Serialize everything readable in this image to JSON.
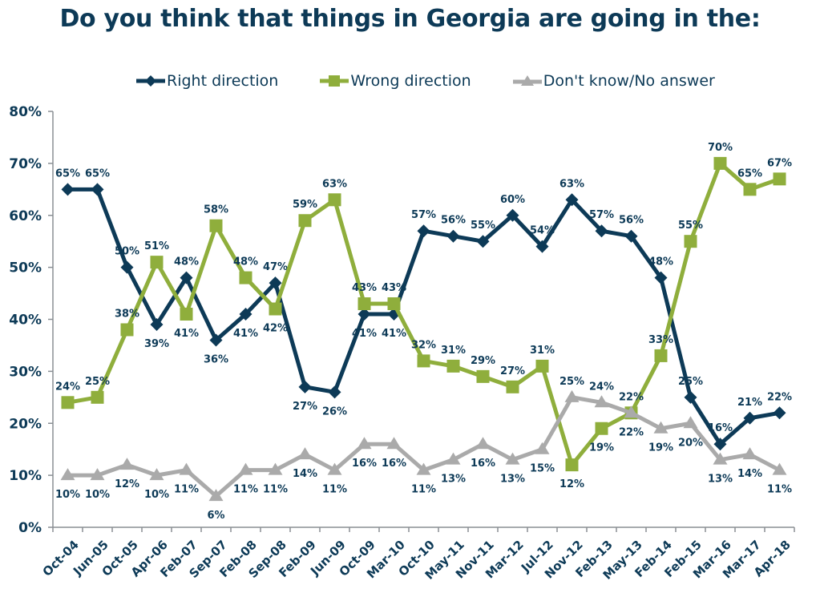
{
  "chart_data": {
    "type": "line",
    "title": "Do you think that things in Georgia are going in the:",
    "xlabel": "",
    "ylabel": "",
    "ylim": [
      0,
      80
    ],
    "yticks": [
      "0%",
      "10%",
      "20%",
      "30%",
      "40%",
      "50%",
      "60%",
      "70%",
      "80%"
    ],
    "grid": false,
    "legend_position": "top",
    "categories": [
      "Oct-04",
      "Jun-05",
      "Oct-05",
      "Apr-06",
      "Feb-07",
      "Sep-07",
      "Feb-08",
      "Sep-08",
      "Feb-09",
      "Jun-09",
      "Oct-09",
      "Mar-10",
      "Oct-10",
      "May-11",
      "Nov-11",
      "Mar-12",
      "Jul-12",
      "Nov-12",
      "Feb-13",
      "May-13",
      "Feb-14",
      "Feb-15",
      "Mar-16",
      "Mar-17",
      "Apr-18"
    ],
    "series": [
      {
        "name": "Right direction",
        "color": "#0d3a57",
        "marker": "diamond",
        "values": [
          65,
          65,
          50,
          39,
          48,
          36,
          41,
          47,
          27,
          26,
          41,
          41,
          57,
          56,
          55,
          60,
          54,
          63,
          57,
          56,
          48,
          25,
          16,
          21,
          22
        ],
        "label_pos": [
          "a",
          "a",
          "a",
          "b",
          "a",
          "b",
          "b",
          "a",
          "b",
          "b",
          "b",
          "b",
          "a",
          "a",
          "a",
          "a",
          "a",
          "a",
          "a",
          "a",
          "a",
          "a",
          "a",
          "a",
          "a"
        ]
      },
      {
        "name": "Wrong direction",
        "color": "#8fae3c",
        "marker": "square",
        "values": [
          24,
          25,
          38,
          51,
          41,
          58,
          48,
          42,
          59,
          63,
          43,
          43,
          32,
          31,
          29,
          27,
          31,
          12,
          19,
          22,
          33,
          55,
          70,
          65,
          67
        ],
        "label_pos": [
          "a",
          "a",
          "a",
          "a",
          "b",
          "a",
          "a",
          "b",
          "a",
          "a",
          "a",
          "a",
          "a",
          "a",
          "a",
          "a",
          "a",
          "b",
          "b",
          "a",
          "a",
          "a",
          "a",
          "a",
          "a"
        ]
      },
      {
        "name": "Don't know/No answer",
        "color": "#aaaaaa",
        "marker": "triangle",
        "values": [
          10,
          10,
          12,
          10,
          11,
          6,
          11,
          11,
          14,
          11,
          16,
          16,
          11,
          13,
          16,
          13,
          15,
          25,
          24,
          22,
          19,
          20,
          13,
          14,
          11
        ],
        "label_pos": [
          "b",
          "b",
          "b",
          "b",
          "b",
          "b",
          "b",
          "b",
          "b",
          "b",
          "b",
          "b",
          "b",
          "b",
          "b",
          "b",
          "b",
          "a",
          "a",
          "b",
          "b",
          "b",
          "b",
          "b",
          "b"
        ]
      }
    ]
  }
}
